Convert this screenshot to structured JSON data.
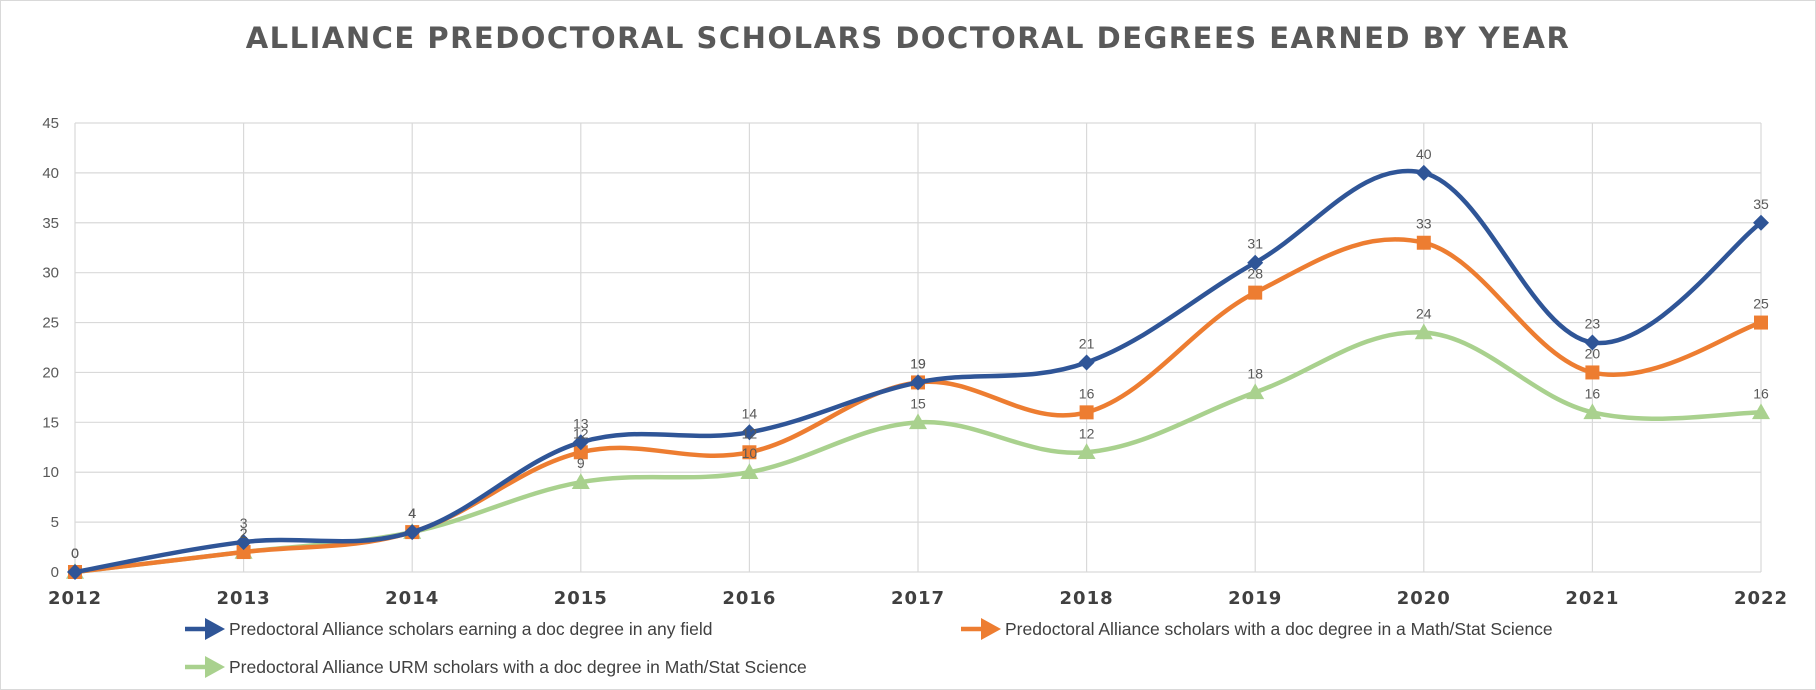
{
  "chart_data": {
    "type": "line",
    "title": "ALLIANCE PREDOCTORAL SCHOLARS DOCTORAL DEGREES EARNED BY YEAR",
    "xlabel": "",
    "ylabel": "",
    "categories": [
      "2012",
      "2013",
      "2014",
      "2015",
      "2016",
      "2017",
      "2018",
      "2019",
      "2020",
      "2021",
      "2022"
    ],
    "ylim": [
      0,
      45
    ],
    "yticks": [
      0,
      5,
      10,
      15,
      20,
      25,
      30,
      35,
      40,
      45
    ],
    "grid": true,
    "legend_position": "bottom",
    "series": [
      {
        "name": "Predoctoral Alliance scholars earning a doc degree in any field",
        "color": "#2f5597",
        "marker": "diamond",
        "values": [
          0,
          3,
          4,
          13,
          14,
          19,
          21,
          31,
          40,
          23,
          35
        ]
      },
      {
        "name": "Predoctoral Alliance scholars with a doc degree in a Math/Stat Science",
        "color": "#ed7d31",
        "marker": "square",
        "values": [
          0,
          2,
          4,
          12,
          12,
          19,
          16,
          28,
          33,
          20,
          25
        ]
      },
      {
        "name": "Predoctoral Alliance URM scholars with a doc degree in Math/Stat Science",
        "color": "#a9d18e",
        "marker": "triangle",
        "values": [
          0,
          2,
          4,
          9,
          10,
          15,
          12,
          18,
          24,
          16,
          16
        ]
      }
    ]
  }
}
